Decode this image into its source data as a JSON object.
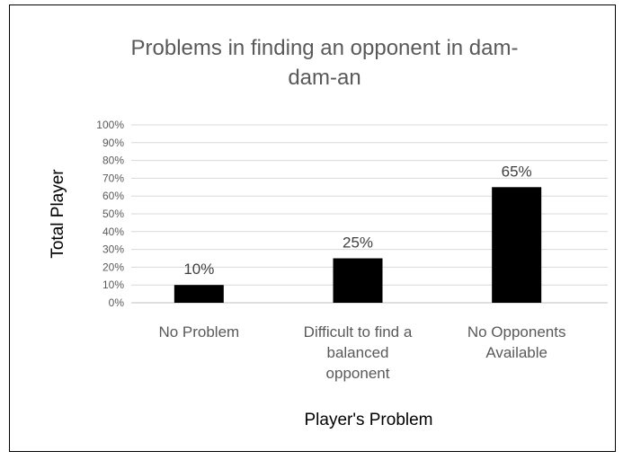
{
  "chart_data": {
    "type": "bar",
    "title_lines": [
      "Problems in finding an opponent in dam-",
      "dam-an"
    ],
    "xlabel": "Player's Problem",
    "ylabel": "Total Player",
    "categories": [
      [
        "No Problem"
      ],
      [
        "Difficult to find a",
        "balanced",
        "opponent"
      ],
      [
        "No Opponents",
        "Available"
      ]
    ],
    "values": [
      10,
      25,
      65
    ],
    "data_labels": [
      "10%",
      "25%",
      "65%"
    ],
    "ylim": [
      0,
      100
    ],
    "yticks": [
      "0%",
      "10%",
      "20%",
      "30%",
      "40%",
      "50%",
      "60%",
      "70%",
      "80%",
      "90%",
      "100%"
    ],
    "grid": true,
    "bar_color": "#000000",
    "grid_color": "#d9d9d9"
  }
}
